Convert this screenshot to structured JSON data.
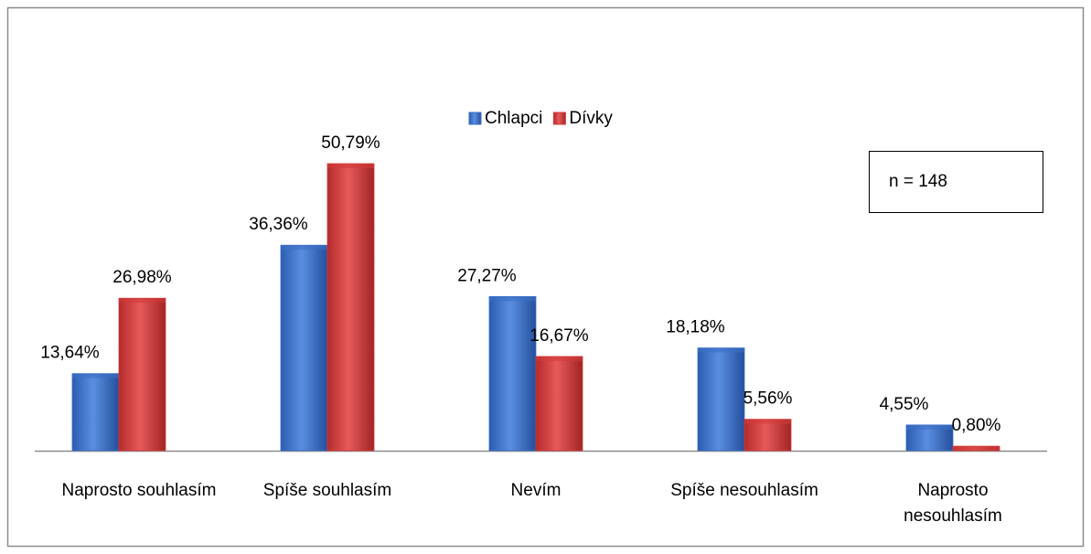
{
  "chart_data": {
    "type": "bar",
    "categories": [
      "Naprosto souhlasím",
      "Spíše souhlasím",
      "Nevím",
      "Spíše nesouhlasím",
      "Naprosto nesouhlasím"
    ],
    "series": [
      {
        "name": "Chlapci",
        "color": "#3a6fc4",
        "values": [
          13.64,
          36.36,
          27.27,
          18.18,
          4.55
        ],
        "value_labels": [
          "13,64%",
          "36,36%",
          "27,27%",
          "18,18%",
          "4,55%"
        ]
      },
      {
        "name": "Dívky",
        "color": "#d23a3a",
        "values": [
          26.98,
          50.79,
          16.67,
          5.56,
          0.8
        ],
        "value_labels": [
          "26,98%",
          "50,79%",
          "16,67%",
          "5,56%",
          "0,80%"
        ]
      }
    ],
    "annotation": "n = 148",
    "legend": "top"
  }
}
